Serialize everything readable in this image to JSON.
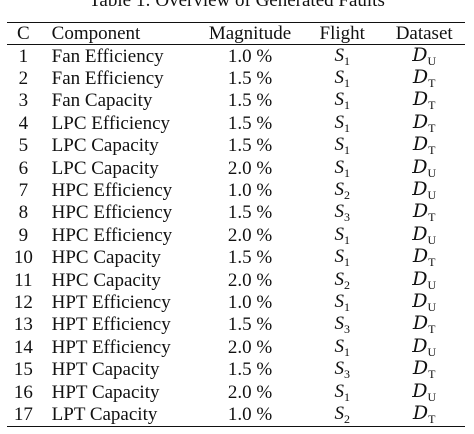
{
  "caption": "Table 1: Overview of Generated Faults",
  "headers": [
    "C",
    "Component",
    "Magnitude",
    "Flight",
    "Dataset"
  ],
  "rows": [
    {
      "c": "1",
      "component": "Fan Efficiency",
      "magnitude": "1.0 %",
      "flight_base": "S",
      "flight_sub": "1",
      "dataset_base": "D",
      "dataset_sub": "U"
    },
    {
      "c": "2",
      "component": "Fan Efficiency",
      "magnitude": "1.5 %",
      "flight_base": "S",
      "flight_sub": "1",
      "dataset_base": "D",
      "dataset_sub": "T"
    },
    {
      "c": "3",
      "component": "Fan Capacity",
      "magnitude": "1.5 %",
      "flight_base": "S",
      "flight_sub": "1",
      "dataset_base": "D",
      "dataset_sub": "T"
    },
    {
      "c": "4",
      "component": "LPC Efficiency",
      "magnitude": "1.5 %",
      "flight_base": "S",
      "flight_sub": "1",
      "dataset_base": "D",
      "dataset_sub": "T"
    },
    {
      "c": "5",
      "component": "LPC Capacity",
      "magnitude": "1.5 %",
      "flight_base": "S",
      "flight_sub": "1",
      "dataset_base": "D",
      "dataset_sub": "T"
    },
    {
      "c": "6",
      "component": "LPC Capacity",
      "magnitude": "2.0 %",
      "flight_base": "S",
      "flight_sub": "1",
      "dataset_base": "D",
      "dataset_sub": "U"
    },
    {
      "c": "7",
      "component": "HPC Efficiency",
      "magnitude": "1.0 %",
      "flight_base": "S",
      "flight_sub": "2",
      "dataset_base": "D",
      "dataset_sub": "U"
    },
    {
      "c": "8",
      "component": "HPC Efficiency",
      "magnitude": "1.5 %",
      "flight_base": "S",
      "flight_sub": "3",
      "dataset_base": "D",
      "dataset_sub": "T"
    },
    {
      "c": "9",
      "component": "HPC Efficiency",
      "magnitude": "2.0 %",
      "flight_base": "S",
      "flight_sub": "1",
      "dataset_base": "D",
      "dataset_sub": "U"
    },
    {
      "c": "10",
      "component": "HPC Capacity",
      "magnitude": "1.5 %",
      "flight_base": "S",
      "flight_sub": "1",
      "dataset_base": "D",
      "dataset_sub": "T"
    },
    {
      "c": "11",
      "component": "HPC Capacity",
      "magnitude": "2.0 %",
      "flight_base": "S",
      "flight_sub": "2",
      "dataset_base": "D",
      "dataset_sub": "U"
    },
    {
      "c": "12",
      "component": "HPT Efficiency",
      "magnitude": "1.0 %",
      "flight_base": "S",
      "flight_sub": "1",
      "dataset_base": "D",
      "dataset_sub": "U"
    },
    {
      "c": "13",
      "component": "HPT Efficiency",
      "magnitude": "1.5 %",
      "flight_base": "S",
      "flight_sub": "3",
      "dataset_base": "D",
      "dataset_sub": "T"
    },
    {
      "c": "14",
      "component": "HPT Efficiency",
      "magnitude": "2.0 %",
      "flight_base": "S",
      "flight_sub": "1",
      "dataset_base": "D",
      "dataset_sub": "U"
    },
    {
      "c": "15",
      "component": "HPT Capacity",
      "magnitude": "1.5 %",
      "flight_base": "S",
      "flight_sub": "3",
      "dataset_base": "D",
      "dataset_sub": "T"
    },
    {
      "c": "16",
      "component": "HPT Capacity",
      "magnitude": "2.0 %",
      "flight_base": "S",
      "flight_sub": "1",
      "dataset_base": "D",
      "dataset_sub": "U"
    },
    {
      "c": "17",
      "component": "LPT Capacity",
      "magnitude": "1.0 %",
      "flight_base": "S",
      "flight_sub": "2",
      "dataset_base": "D",
      "dataset_sub": "T"
    }
  ]
}
